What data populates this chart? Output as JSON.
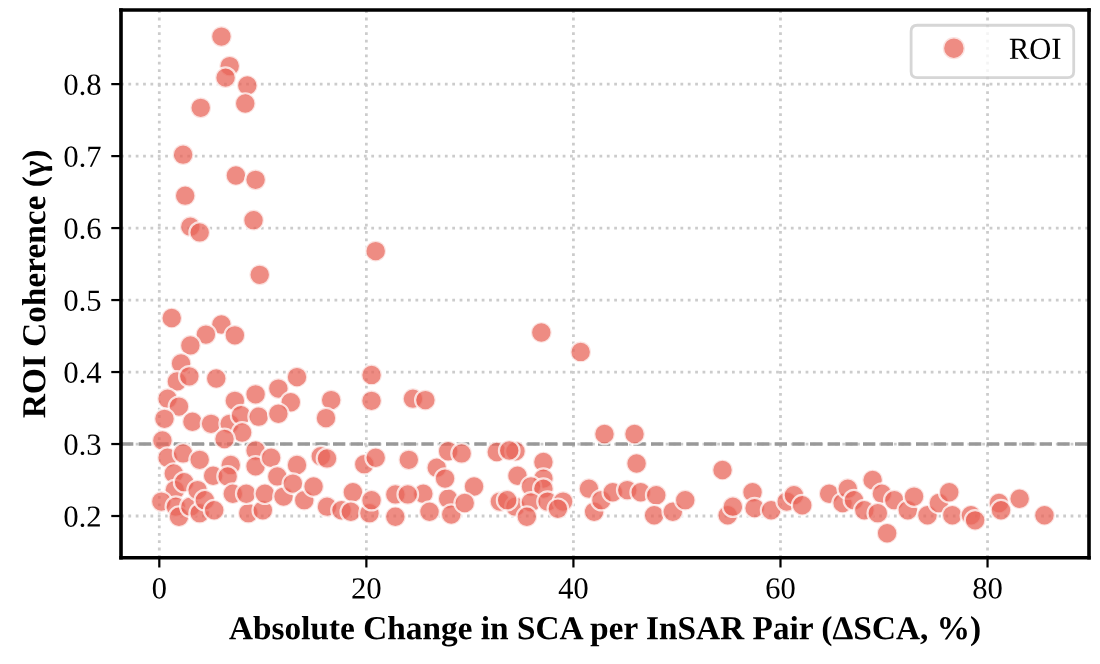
{
  "chart_data": {
    "type": "scatter",
    "xlabel": "Absolute Change in SCA per InSAR Pair (ΔSCA, %)",
    "ylabel": "ROI Coherence (γ)",
    "xlim": [
      -3.7,
      89.8
    ],
    "ylim": [
      0.142,
      0.903
    ],
    "xticks": [
      0,
      20,
      40,
      60,
      80
    ],
    "yticks": [
      0.2,
      0.3,
      0.4,
      0.5,
      0.6,
      0.7,
      0.8
    ],
    "grid": true,
    "legend": "top right",
    "marker": "circle",
    "ref_lines": [
      {
        "axis": "y",
        "value": 0.3,
        "color": "#999999",
        "line_style": "dashed"
      }
    ],
    "series": [
      {
        "name": "ROI",
        "color": "#e8665a",
        "x": [
          6.0,
          6.8,
          6.4,
          8.5,
          8.3,
          4.0,
          2.3,
          7.4,
          9.3,
          2.5,
          9.1,
          3.0,
          3.9,
          9.7,
          20.9,
          1.2,
          6.0,
          4.5,
          7.3,
          3.0,
          2.1,
          1.7,
          2.9,
          5.5,
          13.3,
          20.5,
          0.8,
          1.9,
          11.5,
          9.3,
          7.3,
          12.7,
          16.6,
          20.5,
          24.5,
          25.7,
          0.5,
          3.2,
          5.0,
          6.8,
          7.9,
          9.6,
          11.5,
          16.1,
          8.0,
          6.3,
          0.3,
          0.8,
          2.3,
          3.9,
          5.2,
          6.9,
          9.3,
          9.3,
          10.8,
          13.3,
          15.6,
          16.2,
          19.8,
          20.9,
          24.1,
          26.8,
          27.9,
          29.2,
          32.6,
          34.4,
          1.4,
          1.5,
          0.2,
          1.6,
          1.9,
          2.4,
          3.0,
          3.7,
          3.9,
          4.4,
          5.3,
          6.6,
          7.1,
          8.6,
          8.4,
          10.0,
          10.2,
          11.4,
          12.0,
          12.9,
          14.0,
          14.9,
          16.2,
          17.6,
          18.7,
          18.5,
          20.3,
          20.5,
          22.8,
          22.8,
          25.5,
          26.1,
          27.9,
          28.2,
          30.4,
          29.5,
          32.9,
          34.4,
          27.6,
          24.0,
          36.9,
          40.7,
          43.0,
          45.9,
          46.1,
          37.1,
          34.6,
          33.8,
          54.4,
          37.1,
          35.9,
          37.1,
          33.6,
          35.9,
          37.5,
          39.0,
          38.5,
          35.5,
          41.5,
          42.0,
          42.7,
          43.8,
          45.2,
          46.5,
          48.0,
          47.8,
          49.6,
          50.8,
          54.9,
          55.4,
          57.3,
          57.5,
          59.1,
          60.6,
          61.3,
          62.1,
          64.7,
          66.0,
          66.5,
          67.1,
          68.1,
          68.9,
          69.8,
          69.4,
          71.0,
          70.3,
          72.3,
          72.9,
          74.2,
          75.3,
          76.3,
          76.6,
          78.4,
          78.8,
          81.1,
          81.3,
          83.1,
          85.5
        ],
        "values": [
          0.866,
          0.825,
          0.809,
          0.798,
          0.773,
          0.767,
          0.702,
          0.673,
          0.667,
          0.645,
          0.611,
          0.602,
          0.594,
          0.535,
          0.568,
          0.475,
          0.466,
          0.452,
          0.451,
          0.437,
          0.412,
          0.387,
          0.394,
          0.391,
          0.393,
          0.396,
          0.363,
          0.352,
          0.377,
          0.369,
          0.36,
          0.358,
          0.361,
          0.36,
          0.363,
          0.361,
          0.335,
          0.331,
          0.328,
          0.328,
          0.34,
          0.338,
          0.342,
          0.336,
          0.316,
          0.307,
          0.305,
          0.281,
          0.287,
          0.278,
          0.256,
          0.271,
          0.291,
          0.269,
          0.281,
          0.271,
          0.283,
          0.28,
          0.272,
          0.281,
          0.278,
          0.267,
          0.29,
          0.287,
          0.289,
          0.29,
          0.259,
          0.236,
          0.22,
          0.213,
          0.199,
          0.247,
          0.213,
          0.236,
          0.204,
          0.222,
          0.208,
          0.255,
          0.231,
          0.204,
          0.231,
          0.208,
          0.231,
          0.255,
          0.227,
          0.245,
          0.222,
          0.241,
          0.213,
          0.208,
          0.233,
          0.206,
          0.204,
          0.222,
          0.23,
          0.199,
          0.231,
          0.206,
          0.224,
          0.202,
          0.241,
          0.218,
          0.22,
          0.213,
          0.252,
          0.23,
          0.455,
          0.428,
          0.314,
          0.314,
          0.273,
          0.275,
          0.256,
          0.291,
          0.264,
          0.252,
          0.241,
          0.238,
          0.222,
          0.219,
          0.22,
          0.22,
          0.21,
          0.199,
          0.238,
          0.206,
          0.222,
          0.233,
          0.236,
          0.233,
          0.229,
          0.201,
          0.206,
          0.222,
          0.201,
          0.213,
          0.233,
          0.211,
          0.208,
          0.22,
          0.229,
          0.215,
          0.231,
          0.218,
          0.238,
          0.222,
          0.208,
          0.25,
          0.231,
          0.204,
          0.222,
          0.176,
          0.208,
          0.227,
          0.201,
          0.218,
          0.233,
          0.201,
          0.201,
          0.194,
          0.218,
          0.208,
          0.224,
          0.201
        ]
      }
    ]
  }
}
